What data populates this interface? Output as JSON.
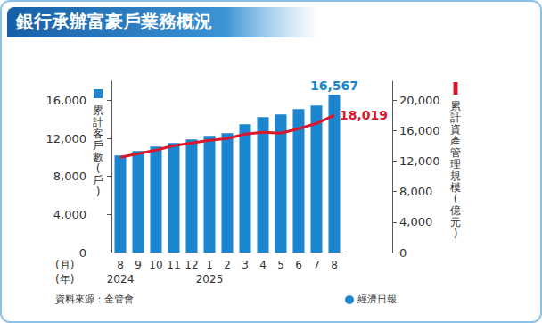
{
  "chart_data": {
    "type": "bar",
    "title": "銀行承辦富豪戶業務概況",
    "categories": [
      "8",
      "9",
      "10",
      "11",
      "12",
      "1",
      "2",
      "3",
      "4",
      "5",
      "6",
      "7",
      "8"
    ],
    "xlabel": "(月)",
    "x_group_label": "(年)",
    "x_groups": [
      {
        "label": "2024",
        "count": 5
      },
      {
        "label": "2025",
        "count": 8
      }
    ],
    "ylabel": "累計客戶數(戶)",
    "y2label": "累計資產管理規模(億元)",
    "ylim": [
      0,
      18000
    ],
    "yticks": [
      0,
      {
        "value": 4000,
        "label": "4,000"
      },
      {
        "value": 8000,
        "label": "8,000"
      },
      {
        "value": 12000,
        "label": "12,000"
      },
      {
        "value": 16000,
        "label": "16,000"
      }
    ],
    "y2lim": [
      0,
      22500
    ],
    "y2ticks": [
      0,
      {
        "value": 4000,
        "label": "4,000"
      },
      {
        "value": 8000,
        "label": "8,000"
      },
      {
        "value": 12000,
        "label": "12,000"
      },
      {
        "value": 16000,
        "label": "16,000"
      },
      {
        "value": 20000,
        "label": "20,000"
      }
    ],
    "series": [
      {
        "type": "bar",
        "color": "#1b86cf",
        "values": [
          10200,
          10670,
          11130,
          11500,
          11880,
          12260,
          12540,
          13470,
          14220,
          14500,
          15060,
          15440,
          16567
        ],
        "value_labels": [
          null,
          null,
          null,
          null,
          null,
          null,
          null,
          null,
          null,
          null,
          null,
          null,
          "16,567"
        ]
      },
      {
        "type": "line",
        "color": "#d9182d",
        "axis": "y2",
        "values": [
          12500,
          12980,
          13450,
          14030,
          14380,
          14740,
          14970,
          15550,
          15790,
          15670,
          16260,
          16960,
          18019
        ],
        "value_labels": [
          null,
          null,
          null,
          null,
          null,
          null,
          null,
          null,
          null,
          null,
          null,
          null,
          "18,019"
        ]
      }
    ],
    "grid": false,
    "source": "資料來源：金管會",
    "credit": "經濟日報"
  }
}
